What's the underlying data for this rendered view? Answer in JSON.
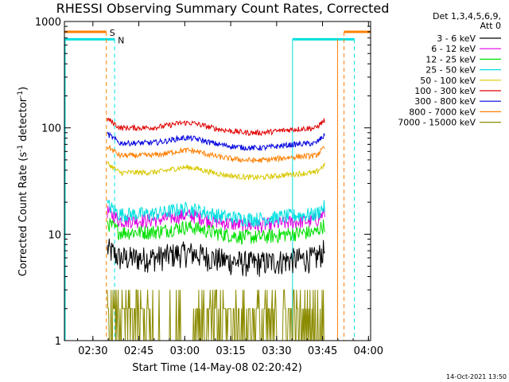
{
  "chart_data": {
    "type": "line",
    "title": "RHESSI Observing Summary Count Rates, Corrected",
    "xlabel": "Start Time (14-May-08 02:20:42)",
    "ylabel_main": "Corrected Count Rate (s",
    "ylabel_sup1": "-1",
    "ylabel_mid": " detector",
    "ylabel_sup2": "-1",
    "ylabel_end": ")",
    "yscale": "log",
    "ylim": [
      1,
      1000
    ],
    "xlim_minutes": [
      0,
      100
    ],
    "x_ticks": [
      {
        "label": "02:30",
        "min": 9.3
      },
      {
        "label": "02:45",
        "min": 24.3
      },
      {
        "label": "03:00",
        "min": 39.3
      },
      {
        "label": "03:15",
        "min": 54.3
      },
      {
        "label": "03:30",
        "min": 69.3
      },
      {
        "label": "03:45",
        "min": 84.3
      },
      {
        "label": "04:00",
        "min": 99.3
      }
    ],
    "y_ticks": [
      {
        "label": "1",
        "value": 1
      },
      {
        "label": "10",
        "value": 10
      },
      {
        "label": "100",
        "value": 100
      },
      {
        "label": "1000",
        "value": 1000
      }
    ],
    "legend_header": [
      "Det 1,3,4,5,6,9,",
      "Att 0"
    ],
    "series": [
      {
        "name": "3 - 6 keV",
        "color": "#000000",
        "base": 6
      },
      {
        "name": "6 - 12 keV",
        "color": "#e000e0",
        "base": 13.5
      },
      {
        "name": "12 - 25 keV",
        "color": "#00e000",
        "base": 10.5
      },
      {
        "name": "25 - 50 keV",
        "color": "#00e0e0",
        "base": 15.5
      },
      {
        "name": "50 - 100 keV",
        "color": "#d8c800",
        "base": 38
      },
      {
        "name": "100 - 300 keV",
        "color": "#e00000",
        "base": 100
      },
      {
        "name": "300 - 800 keV",
        "color": "#0000e0",
        "base": 72
      },
      {
        "name": "800 - 7000 keV",
        "color": "#ff7f00",
        "base": 55
      },
      {
        "name": "7000 - 15000 keV",
        "color": "#8b8b00",
        "base": 1.6
      }
    ],
    "annotations": [
      {
        "text": "S",
        "color": "#ff7f00"
      },
      {
        "text": "N",
        "color": "#00e0e0"
      }
    ],
    "data_window_minutes": [
      14,
      85
    ],
    "saa_flag": {
      "value": 800,
      "color": "#ff7f00",
      "segments": [
        [
          0,
          13.7
        ],
        [
          91.3,
          100
        ]
      ]
    },
    "night_flag": {
      "value": 680,
      "color": "#00e0e0",
      "segments": [
        [
          0,
          16.4
        ],
        [
          74.5,
          94.7
        ]
      ]
    },
    "saa_lines_minutes": [
      13.7,
      91.3
    ],
    "night_lines_minutes": [
      16.4,
      94.7
    ],
    "solid_lines": [
      {
        "min": 74.5,
        "color": "#00e0e0"
      },
      {
        "min": 89.2,
        "color": "#ff7f00"
      }
    ],
    "timestamp": "14-Oct-2021 13:50"
  }
}
